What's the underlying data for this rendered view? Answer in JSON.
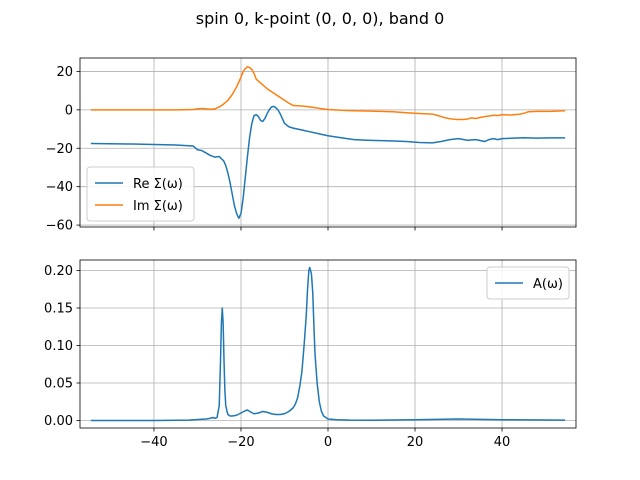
{
  "figure_title": "spin 0, k-point (0, 0, 0), band 0",
  "colors": {
    "blue": "#1f77b4",
    "orange": "#ff7f0e",
    "grid": "#b0b0b0"
  },
  "chart_data": [
    {
      "type": "line",
      "grid": true,
      "legend_loc": "lower-left",
      "xlim": [
        -57,
        57
      ],
      "ylim": [
        -61,
        27
      ],
      "xticks": [
        -40,
        -20,
        0,
        20,
        40
      ],
      "xticklabels_visible": false,
      "yticks": [
        -60,
        -40,
        -20,
        0,
        20
      ],
      "yticklabels": [
        "−60",
        "−40",
        "−20",
        "0",
        "20"
      ],
      "series": [
        {
          "name": "Re Σ(ω)",
          "color": "#1f77b4",
          "x": [
            -54.5,
            -45,
            -35,
            -31,
            -30,
            -29,
            -28,
            -27,
            -26,
            -25,
            -24.5,
            -24,
            -23.5,
            -23,
            -22.5,
            -22,
            -21.5,
            -21,
            -20.5,
            -20,
            -19.5,
            -19,
            -18.5,
            -18,
            -17.5,
            -17,
            -16.5,
            -16,
            -15.5,
            -15,
            -14.5,
            -14,
            -13.5,
            -13,
            -12.5,
            -12,
            -11.5,
            -11,
            -10.5,
            -10,
            -9,
            -8,
            -6,
            -4,
            -2,
            0,
            3,
            6,
            9,
            12,
            15,
            18,
            21,
            24,
            26,
            28,
            30,
            32,
            34,
            36,
            37,
            38,
            39,
            40,
            42,
            45,
            48,
            51,
            54.5
          ],
          "y": [
            -17.5,
            -17.8,
            -18.3,
            -18.8,
            -20.8,
            -21.2,
            -22.5,
            -23.8,
            -24.6,
            -24.3,
            -25.5,
            -26.5,
            -29,
            -33,
            -38,
            -44,
            -50,
            -54,
            -56.5,
            -54,
            -46,
            -35,
            -24,
            -14,
            -7,
            -3,
            -2.5,
            -3.5,
            -5.5,
            -6,
            -4.5,
            -2,
            0,
            1.5,
            1.8,
            1.2,
            0,
            -2,
            -4.5,
            -7,
            -8.8,
            -9.5,
            -10.5,
            -11.5,
            -12.5,
            -13.5,
            -14.5,
            -15.5,
            -15.8,
            -16,
            -16.2,
            -16.5,
            -17,
            -17.2,
            -16.5,
            -15.5,
            -15,
            -15.8,
            -15.5,
            -16.5,
            -15.5,
            -15,
            -15.5,
            -15,
            -14.8,
            -14.5,
            -14.7,
            -14.6,
            -14.6
          ]
        },
        {
          "name": "Im Σ(ω)",
          "color": "#ff7f0e",
          "x": [
            -54.5,
            -45,
            -35,
            -31,
            -30,
            -29,
            -28,
            -27,
            -26,
            -25,
            -24,
            -23,
            -22,
            -21,
            -20,
            -19.5,
            -19,
            -18.5,
            -18,
            -17.5,
            -17,
            -16.5,
            -16,
            -15,
            -14,
            -13,
            -12,
            -11,
            -10,
            -9,
            -8,
            -6,
            -4,
            -2,
            0,
            3,
            6,
            9,
            12,
            15,
            18,
            20,
            22,
            24,
            25,
            26,
            27,
            28,
            29,
            30,
            31,
            32,
            33,
            34,
            35,
            36,
            37,
            38,
            39,
            40,
            42,
            44,
            45,
            46,
            48,
            51,
            54.5
          ],
          "y": [
            0,
            0,
            0,
            0.2,
            0.5,
            0.7,
            0.5,
            0.3,
            0.5,
            1.5,
            3,
            5,
            8,
            12,
            17,
            20,
            21.5,
            22.5,
            22,
            21,
            19,
            16,
            15,
            13,
            11,
            9.5,
            8,
            6.5,
            5,
            3.5,
            2.3,
            2,
            1.5,
            0.8,
            0.2,
            -0.2,
            -0.5,
            -0.6,
            -0.8,
            -1,
            -1.5,
            -1.8,
            -2,
            -2.2,
            -2.8,
            -3.5,
            -4.2,
            -4.6,
            -4.9,
            -5,
            -5,
            -4.8,
            -4.2,
            -4.5,
            -4,
            -3.5,
            -3.2,
            -2.8,
            -3,
            -2.5,
            -2.7,
            -2.3,
            -1.8,
            -1,
            -0.8,
            -0.8,
            -0.5
          ]
        }
      ]
    },
    {
      "type": "line",
      "grid": true,
      "legend_loc": "upper-right",
      "xlim": [
        -57,
        57
      ],
      "ylim": [
        -0.01,
        0.214
      ],
      "xticks": [
        -40,
        -20,
        0,
        20,
        40
      ],
      "xticklabels": [
        "−40",
        "−20",
        "0",
        "20",
        "40"
      ],
      "yticks": [
        0,
        0.05,
        0.1,
        0.15,
        0.2
      ],
      "yticklabels": [
        "0.00",
        "0.05",
        "0.10",
        "0.15",
        "0.20"
      ],
      "series": [
        {
          "name": "A(ω)",
          "color": "#1f77b4",
          "x": [
            -54.5,
            -40,
            -32,
            -28,
            -27,
            -26.5,
            -26,
            -25.5,
            -25,
            -24.7,
            -24.5,
            -24.3,
            -24.1,
            -23.9,
            -23.7,
            -23.5,
            -23.2,
            -23,
            -22.5,
            -22,
            -21,
            -20,
            -19,
            -18.5,
            -18,
            -17,
            -16,
            -15,
            -14,
            -13,
            -12,
            -11,
            -10,
            -9,
            -8,
            -7.5,
            -7,
            -6.5,
            -6,
            -5.5,
            -5,
            -4.7,
            -4.4,
            -4.2,
            -4,
            -3.8,
            -3.5,
            -3.2,
            -3,
            -2.5,
            -2,
            -1.5,
            -1,
            0,
            2,
            5,
            10,
            20,
            30,
            40,
            54.5
          ],
          "y": [
            0,
            0,
            0.0005,
            0.002,
            0.003,
            0.004,
            0.003,
            0.004,
            0.02,
            0.08,
            0.13,
            0.15,
            0.13,
            0.08,
            0.04,
            0.02,
            0.012,
            0.008,
            0.006,
            0.006,
            0.007,
            0.01,
            0.013,
            0.014,
            0.012,
            0.009,
            0.01,
            0.012,
            0.011,
            0.009,
            0.008,
            0.008,
            0.009,
            0.012,
            0.017,
            0.022,
            0.03,
            0.045,
            0.065,
            0.1,
            0.14,
            0.175,
            0.2,
            0.204,
            0.2,
            0.195,
            0.17,
            0.12,
            0.09,
            0.05,
            0.025,
            0.012,
            0.006,
            0.002,
            0.001,
            0.0005,
            0.0003,
            0.001,
            0.002,
            0.001,
            0.0005
          ]
        }
      ]
    }
  ]
}
